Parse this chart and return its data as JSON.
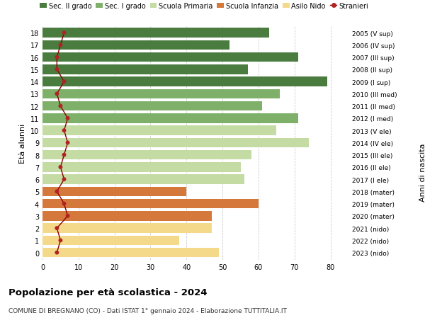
{
  "ages": [
    18,
    17,
    16,
    15,
    14,
    13,
    12,
    11,
    10,
    9,
    8,
    7,
    6,
    5,
    4,
    3,
    2,
    1,
    0
  ],
  "anni_nascita": [
    "2005 (V sup)",
    "2006 (IV sup)",
    "2007 (III sup)",
    "2008 (II sup)",
    "2009 (I sup)",
    "2010 (III med)",
    "2011 (II med)",
    "2012 (I med)",
    "2013 (V ele)",
    "2014 (IV ele)",
    "2015 (III ele)",
    "2016 (II ele)",
    "2017 (I ele)",
    "2018 (mater)",
    "2019 (mater)",
    "2020 (mater)",
    "2021 (nido)",
    "2022 (nido)",
    "2023 (nido)"
  ],
  "bar_values": [
    63,
    52,
    71,
    57,
    79,
    66,
    61,
    71,
    65,
    74,
    58,
    55,
    56,
    40,
    60,
    47,
    47,
    38,
    49
  ],
  "bar_colors": [
    "#4a7c3f",
    "#4a7c3f",
    "#4a7c3f",
    "#4a7c3f",
    "#4a7c3f",
    "#7fb069",
    "#7fb069",
    "#7fb069",
    "#c5dba4",
    "#c5dba4",
    "#c5dba4",
    "#c5dba4",
    "#c5dba4",
    "#d4793b",
    "#d4793b",
    "#d4793b",
    "#f5d98b",
    "#f5d98b",
    "#f5d98b"
  ],
  "stranieri_values": [
    6,
    5,
    4,
    4,
    6,
    4,
    5,
    7,
    6,
    7,
    6,
    5,
    6,
    4,
    6,
    7,
    4,
    5,
    4
  ],
  "legend_labels": [
    "Sec. II grado",
    "Sec. I grado",
    "Scuola Primaria",
    "Scuola Infanzia",
    "Asilo Nido",
    "Stranieri"
  ],
  "legend_colors": [
    "#4a7c3f",
    "#7fb069",
    "#c5dba4",
    "#d4793b",
    "#f5d98b",
    "#b22222"
  ],
  "ylabel": "Età alunni",
  "ylabel2": "Anni di nascita",
  "title": "Popolazione per età scolastica - 2024",
  "subtitle": "COMUNE DI BREGNANO (CO) - Dati ISTAT 1° gennaio 2024 - Elaborazione TUTTITALIA.IT",
  "xlim": [
    0,
    85
  ],
  "xticks": [
    0,
    10,
    20,
    30,
    40,
    50,
    60,
    70,
    80
  ],
  "background_color": "#ffffff",
  "grid_color": "#cccccc"
}
